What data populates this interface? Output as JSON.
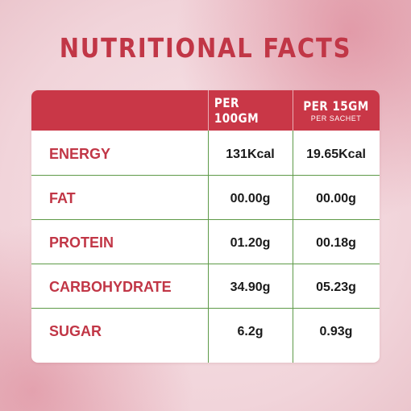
{
  "title": "NUTRITIONAL FACTS",
  "columns": [
    {
      "main": "PER 100GM",
      "sub": ""
    },
    {
      "main": "PER 15GM",
      "sub": "PER SACHET"
    }
  ],
  "rows": [
    {
      "label": "ENERGY",
      "per100": "131Kcal",
      "per15": "19.65Kcal"
    },
    {
      "label": "FAT",
      "per100": "00.00g",
      "per15": "00.00g"
    },
    {
      "label": "PROTEIN",
      "per100": "01.20g",
      "per15": "00.18g"
    },
    {
      "label": "CARBOHYDRATE",
      "per100": "34.90g",
      "per15": "05.23g"
    },
    {
      "label": "SUGAR",
      "per100": "6.2g",
      "per15": "0.93g"
    }
  ],
  "colors": {
    "accent": "#c93747",
    "label_text": "#c13646",
    "divider": "#5e9a48",
    "background": "#f1d4da"
  }
}
